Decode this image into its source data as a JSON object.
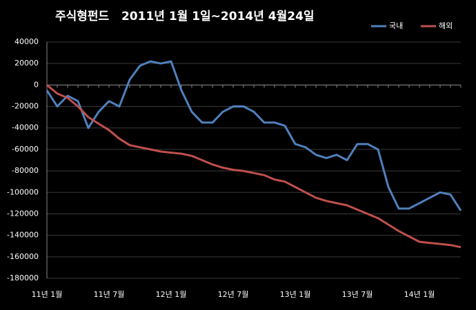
{
  "chart_data": {
    "type": "line",
    "title": "주식형펀드   2011년 1월 1일~2014년 4월24일",
    "categories": [
      "11년 1월",
      null,
      null,
      null,
      null,
      null,
      "11년 7월",
      null,
      null,
      null,
      null,
      null,
      "12년 1월",
      null,
      null,
      null,
      null,
      null,
      "12년 7월",
      null,
      null,
      null,
      null,
      null,
      "13년 1월",
      null,
      null,
      null,
      null,
      null,
      "13년 7월",
      null,
      null,
      null,
      null,
      null,
      "14년 1월",
      null,
      null,
      null,
      null
    ],
    "series": [
      {
        "name": "국내",
        "color": "#4f81bd",
        "values": [
          -5000,
          -20000,
          -10000,
          -15000,
          -40000,
          -25000,
          -15000,
          -20000,
          5000,
          18000,
          22000,
          20000,
          22000,
          -5000,
          -25000,
          -35000,
          -35000,
          -25000,
          -20000,
          -20000,
          -25000,
          -35000,
          -35000,
          -38000,
          -55000,
          -58000,
          -65000,
          -68000,
          -65000,
          -70000,
          -55000,
          -55000,
          -60000,
          -95000,
          -115000,
          -115000,
          -110000,
          -105000,
          -100000,
          -102000,
          -117000
        ]
      },
      {
        "name": "해외",
        "color": "#c0504d",
        "values": [
          0,
          -8000,
          -12000,
          -20000,
          -30000,
          -36000,
          -42000,
          -50000,
          -56000,
          -58000,
          -60000,
          -62000,
          -63000,
          -64000,
          -66000,
          -70000,
          -74000,
          -77000,
          -79000,
          -80000,
          -82000,
          -84000,
          -88000,
          -90000,
          -95000,
          -100000,
          -105000,
          -108000,
          -110000,
          -112000,
          -116000,
          -120000,
          -124000,
          -130000,
          -136000,
          -141000,
          -146000,
          -147000,
          -148000,
          -149000,
          -151000
        ]
      }
    ],
    "ylim": [
      -180000,
      40000
    ],
    "yticks": [
      -180000,
      -160000,
      -140000,
      -120000,
      -100000,
      -80000,
      -60000,
      -40000,
      -20000,
      0,
      20000,
      40000
    ],
    "grid": true,
    "legend": "top-right"
  }
}
